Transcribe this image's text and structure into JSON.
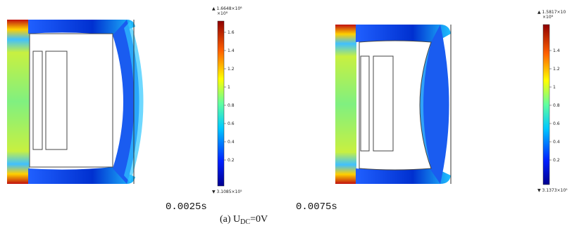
{
  "panels": [
    {
      "colorbar": {
        "max_label": "▲ 1.6648×10⁸",
        "multiplier": "×10⁸",
        "ticks": [
          "1.6",
          "1.4",
          "1.2",
          "1",
          "0.8",
          "0.6",
          "0.4",
          "0.2"
        ],
        "min_label": "▼ 3.1085×10⁵"
      },
      "time": "0.0025s"
    },
    {
      "colorbar": {
        "max_label": "▲ 1.5817×10",
        "multiplier": "×10⁸",
        "ticks": [
          "1.4",
          "1.2",
          "1",
          "0.8",
          "0.6",
          "0.4",
          "0.2"
        ],
        "min_label": "▼ 3.1373×10⁵"
      },
      "time": "0.0075s"
    }
  ],
  "caption": {
    "prefix": "(a) U",
    "subscript": "DC",
    "suffix": "=0V"
  }
}
